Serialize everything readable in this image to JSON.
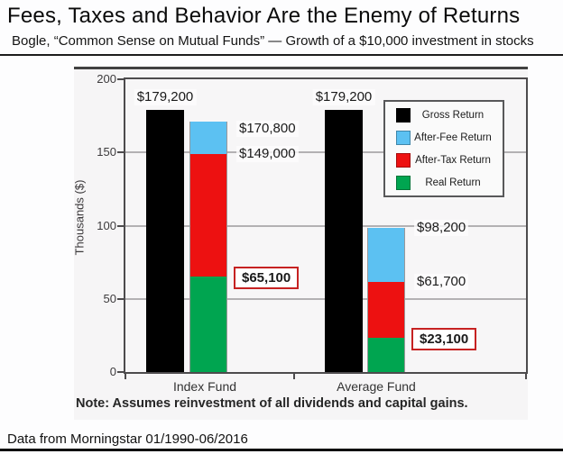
{
  "page": {
    "title": "Fees, Taxes and Behavior Are the Enemy of Returns",
    "subtitle": "Bogle, “Common Sense on Mutual Funds” — Growth of a $10,000 investment in stocks",
    "footer": "Data from Morningstar 01/1990-06/2016"
  },
  "chart_data": {
    "type": "bar",
    "variant": "per category: one gross-return bar plus one stacked bar (real / after-tax / after-fee)",
    "title": "",
    "xlabel": "",
    "ylabel": "Thousands ($)",
    "ylim": [
      0,
      200
    ],
    "yticks": [
      0,
      50,
      100,
      150,
      200
    ],
    "grid": true,
    "legend_position": "upper right",
    "categories": [
      "Index Fund",
      "Average Fund"
    ],
    "series": [
      {
        "name": "Gross Return",
        "color": "#000000",
        "values": [
          179200,
          179200
        ],
        "labels": [
          "$179,200",
          "$179,200"
        ]
      },
      {
        "name": "After-Fee Return",
        "color": "#5cc1f2",
        "values": [
          170800,
          98200
        ],
        "labels": [
          "$170,800",
          "$98,200"
        ]
      },
      {
        "name": "After-Tax Return",
        "color": "#ed1111",
        "values": [
          149000,
          61700
        ],
        "labels": [
          "$149,000",
          "$61,700"
        ]
      },
      {
        "name": "Real Return",
        "color": "#00a550",
        "values": [
          65100,
          23100
        ],
        "labels": [
          "$65,100",
          "$23,100"
        ],
        "highlighted": true
      }
    ],
    "highlight_box_color": "#c62222",
    "note": "Note: Assumes reinvestment of all dividends and capital gains."
  }
}
